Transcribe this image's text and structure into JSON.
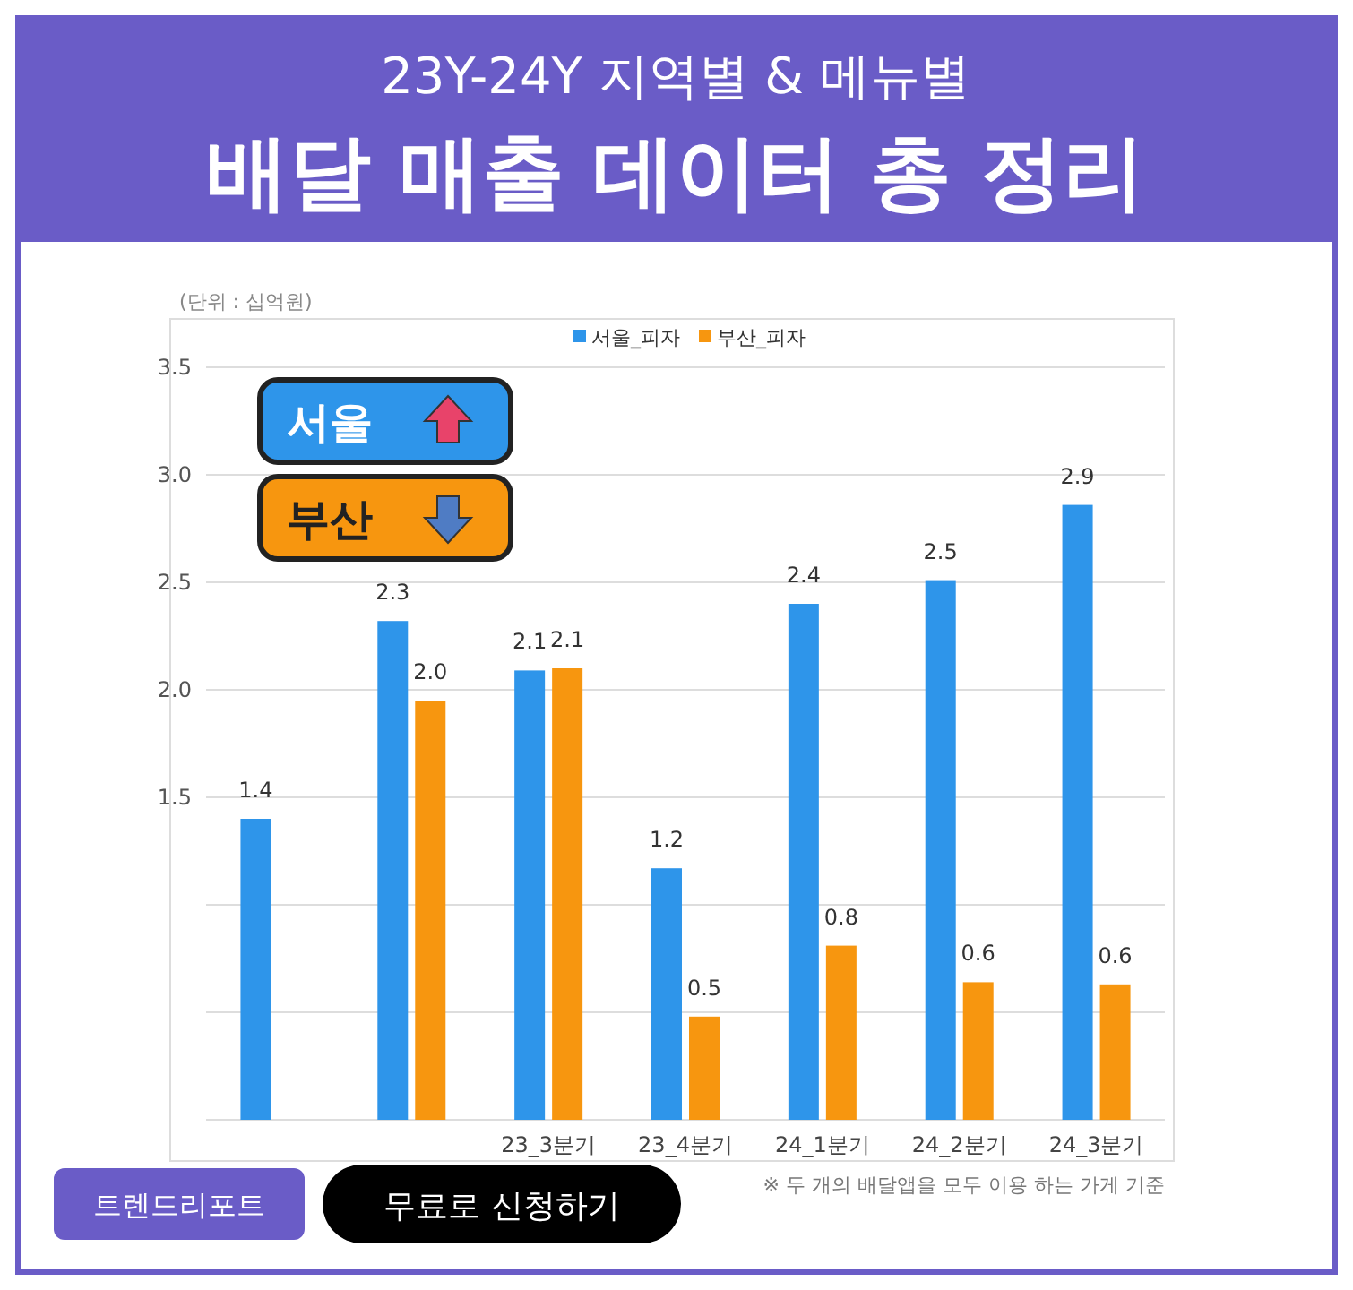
{
  "chart_data": {
    "type": "bar",
    "title": "23Y-24Y 지역별 & 메뉴별",
    "subtitle": "배달 매출 데이터 총 정리",
    "ylabel": "(단위 : 십억원)",
    "categories": [
      null,
      null,
      "23_3분기",
      "23_4분기",
      "24_1분기",
      "24_2분기",
      "24_3분기"
    ],
    "series": [
      {
        "name": "서울_피자",
        "color": "#2e95ea",
        "values": [
          1.4,
          2.32,
          2.09,
          1.17,
          2.4,
          2.51,
          2.86
        ],
        "value_labels": [
          "1.4",
          "2.3",
          "2.1",
          "1.2",
          "2.4",
          "2.5",
          "2.9"
        ]
      },
      {
        "name": "부산_피자",
        "color": "#f7960f",
        "values": [
          null,
          1.95,
          2.1,
          0.48,
          0.81,
          0.64,
          0.63
        ],
        "value_labels": [
          null,
          "2.0",
          "2.1",
          "0.5",
          "0.8",
          "0.6",
          "0.6"
        ]
      }
    ],
    "ylim": [
      0,
      3.5
    ],
    "yticks": [
      {
        "value": 0,
        "label": null
      },
      {
        "value": 0.5,
        "label": null
      },
      {
        "value": 1,
        "label": null
      },
      {
        "value": 1.5,
        "label": "1.5"
      },
      {
        "value": 2,
        "label": "2.0"
      },
      {
        "value": 2.5,
        "label": "2.5"
      },
      {
        "value": 3,
        "label": "3.0"
      },
      {
        "value": 3.5,
        "label": "3.5"
      }
    ],
    "grid": "y",
    "legend": "top",
    "annotations": [
      "※ 두 개의 배달앱을 모두 이용 하는 가게 기준",
      "서울",
      "부산",
      "트렌드리포트",
      "무료로 신청하기"
    ]
  }
}
